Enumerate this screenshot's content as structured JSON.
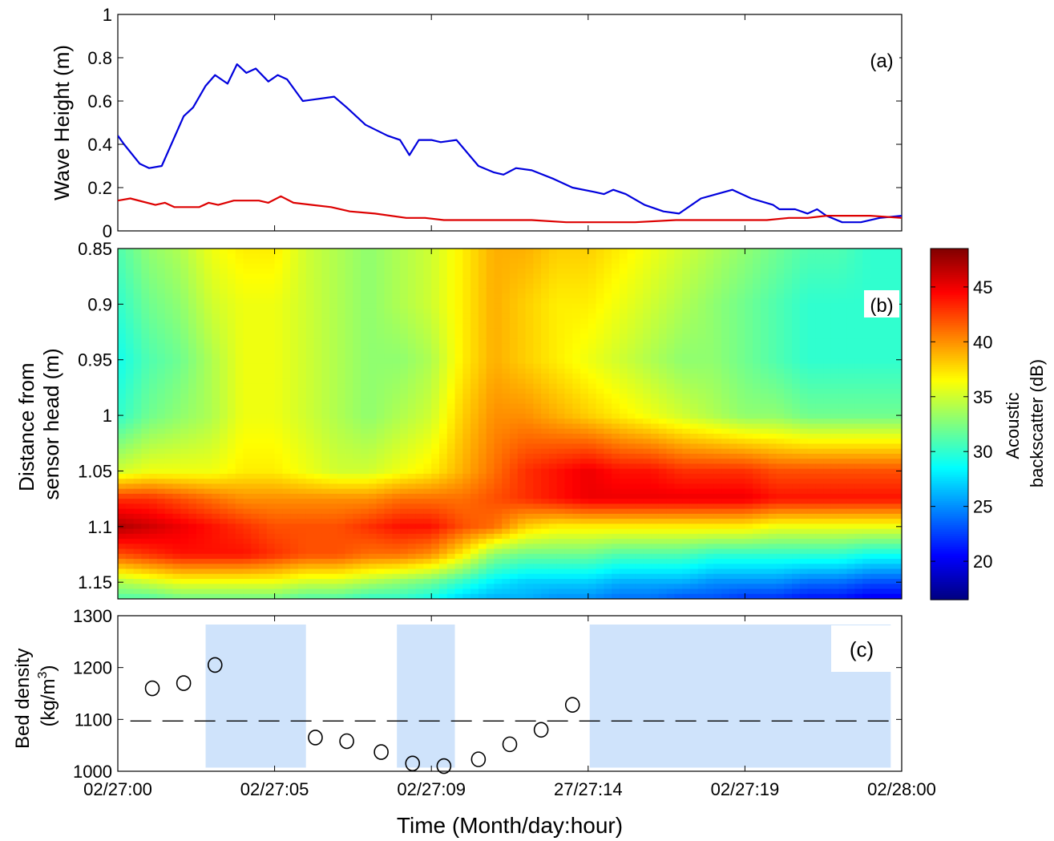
{
  "figure": {
    "x_tick_labels": [
      "02/27:00",
      "02/27:05",
      "02/27:09",
      "27/27:14",
      "02/27:19",
      "02/28:00"
    ],
    "x_tick_hours": [
      0,
      5,
      10,
      15,
      20,
      25
    ],
    "xlabel": "Time (Month/day:hour)",
    "x_range_hours": [
      0,
      25
    ]
  },
  "chart_data": [
    {
      "type": "line",
      "panel_label": "(a)",
      "ylabel": "Wave Height (m)",
      "ylim": [
        0,
        1
      ],
      "y_ticks": [
        0,
        0.2,
        0.4,
        0.6,
        0.8,
        1
      ],
      "y_tick_labels": [
        "0",
        "0.2",
        "0.4",
        "0.6",
        "0.8",
        "1"
      ],
      "series": [
        {
          "color": "#0000dd",
          "x": [
            0,
            0.2,
            0.7,
            1.0,
            1.4,
            2.1,
            2.4,
            2.8,
            3.1,
            3.5,
            3.8,
            4.1,
            4.4,
            4.8,
            5.1,
            5.4,
            5.9,
            6.9,
            7.3,
            7.9,
            8.6,
            9.0,
            9.3,
            9.6,
            10.0,
            10.3,
            10.8,
            11.5,
            12.0,
            12.3,
            12.7,
            13.2,
            13.9,
            14.5,
            15.2,
            15.5,
            15.8,
            16.2,
            16.8,
            17.4,
            17.9,
            18.6,
            19.1,
            19.6,
            20.2,
            20.9,
            21.1,
            21.6,
            22.0,
            22.3,
            22.6,
            23.1,
            23.7,
            24.3,
            25.0
          ],
          "y": [
            0.44,
            0.4,
            0.31,
            0.29,
            0.3,
            0.53,
            0.57,
            0.67,
            0.72,
            0.68,
            0.77,
            0.73,
            0.75,
            0.69,
            0.72,
            0.7,
            0.6,
            0.62,
            0.57,
            0.49,
            0.44,
            0.42,
            0.35,
            0.42,
            0.42,
            0.41,
            0.42,
            0.3,
            0.27,
            0.26,
            0.29,
            0.28,
            0.24,
            0.2,
            0.18,
            0.17,
            0.19,
            0.17,
            0.12,
            0.09,
            0.08,
            0.15,
            0.17,
            0.19,
            0.15,
            0.12,
            0.1,
            0.1,
            0.08,
            0.1,
            0.07,
            0.04,
            0.04,
            0.06,
            0.07
          ]
        },
        {
          "color": "#dd0000",
          "x": [
            0,
            0.4,
            1.2,
            1.5,
            1.8,
            2.3,
            2.6,
            2.9,
            3.2,
            3.7,
            4.0,
            4.5,
            4.8,
            5.2,
            5.6,
            6.2,
            6.8,
            7.4,
            8.2,
            9.2,
            9.8,
            10.4,
            11.7,
            12.5,
            13.2,
            14.3,
            15.3,
            16.5,
            17.8,
            18.7,
            19.9,
            20.7,
            21.4,
            22.0,
            22.6,
            23.3,
            24.0,
            25.0
          ],
          "y": [
            0.14,
            0.15,
            0.12,
            0.13,
            0.11,
            0.11,
            0.11,
            0.13,
            0.12,
            0.14,
            0.14,
            0.14,
            0.13,
            0.16,
            0.13,
            0.12,
            0.11,
            0.09,
            0.08,
            0.06,
            0.06,
            0.05,
            0.05,
            0.05,
            0.05,
            0.04,
            0.04,
            0.04,
            0.05,
            0.05,
            0.05,
            0.05,
            0.06,
            0.06,
            0.07,
            0.07,
            0.07,
            0.06
          ]
        }
      ]
    },
    {
      "type": "heatmap",
      "panel_label": "(b)",
      "ylabel_lines": [
        "Distance from",
        "sensor head (m)"
      ],
      "ylim": [
        0.85,
        1.165
      ],
      "y_ticks": [
        0.85,
        0.9,
        0.95,
        1,
        1.05,
        1.1,
        1.15
      ],
      "y_tick_labels": [
        "0.85",
        "0.9",
        "0.95",
        "1",
        "1.05",
        "1.1",
        "1.15"
      ],
      "y_inverted": true,
      "x_hours": [
        0,
        1,
        2,
        3,
        4,
        5,
        6,
        7,
        8,
        9,
        10,
        11,
        12,
        13,
        14,
        15,
        16,
        17,
        18,
        19,
        20,
        21,
        22,
        23,
        24,
        25
      ],
      "y_depths": [
        0.85,
        0.9,
        0.95,
        1.0,
        1.05,
        1.075,
        1.1,
        1.125,
        1.15,
        1.165
      ],
      "z_db": [
        [
          31,
          33,
          34,
          36,
          37,
          37,
          35,
          34,
          33,
          34,
          35,
          37,
          39,
          39,
          38,
          38,
          37,
          36,
          35,
          34,
          33,
          32,
          31,
          31,
          30,
          30
        ],
        [
          30,
          32,
          33,
          35,
          36,
          36,
          35,
          34,
          33,
          34,
          35,
          37,
          39,
          38,
          37,
          37,
          36,
          35,
          34,
          33,
          32,
          31,
          30,
          30,
          30,
          30
        ],
        [
          29,
          31,
          32,
          34,
          36,
          36,
          35,
          34,
          33,
          33,
          34,
          37,
          39,
          38,
          37,
          36,
          35,
          34,
          33,
          33,
          32,
          31,
          30,
          30,
          30,
          30
        ],
        [
          30,
          32,
          33,
          34,
          36,
          36,
          35,
          34,
          33,
          34,
          35,
          38,
          40,
          40,
          39,
          38,
          37,
          36,
          35,
          34,
          33,
          33,
          32,
          32,
          32,
          32
        ],
        [
          35,
          36,
          36,
          36,
          37,
          37,
          36,
          35,
          35,
          36,
          37,
          39,
          41,
          43,
          44,
          45,
          44,
          44,
          43,
          43,
          43,
          42,
          42,
          42,
          42,
          42
        ],
        [
          43,
          43,
          42,
          41,
          40,
          40,
          40,
          40,
          40,
          41,
          41,
          41,
          42,
          43,
          44,
          45,
          45,
          45,
          45,
          45,
          45,
          44,
          44,
          44,
          44,
          44
        ],
        [
          47,
          46,
          45,
          44,
          43,
          42,
          42,
          42,
          43,
          44,
          44,
          42,
          41,
          38,
          37,
          37,
          37,
          37,
          37,
          37,
          37,
          36,
          36,
          36,
          36,
          36
        ],
        [
          42,
          43,
          44,
          44,
          44,
          43,
          42,
          42,
          41,
          41,
          40,
          37,
          33,
          32,
          32,
          32,
          31,
          31,
          31,
          30,
          30,
          30,
          30,
          30,
          29,
          29
        ],
        [
          34,
          35,
          36,
          36,
          36,
          36,
          35,
          35,
          34,
          33,
          32,
          30,
          28,
          27,
          27,
          27,
          26,
          26,
          26,
          25,
          25,
          25,
          24,
          24,
          23,
          23
        ],
        [
          31,
          31,
          32,
          32,
          32,
          32,
          31,
          31,
          30,
          30,
          29,
          27,
          26,
          26,
          25,
          25,
          24,
          24,
          23,
          23,
          22,
          22,
          21,
          21,
          20,
          20
        ]
      ],
      "colorbar": {
        "range": [
          16.5,
          48.5
        ],
        "ticks": [
          20,
          25,
          30,
          35,
          40,
          45
        ],
        "tick_labels": [
          "20",
          "25",
          "30",
          "35",
          "40",
          "45"
        ],
        "label_lines": [
          "Acoustic",
          "backscatter (dB)"
        ],
        "colormap": "jet"
      }
    },
    {
      "type": "scatter",
      "panel_label": "(c)",
      "ylabel_lines": [
        "Bed density",
        "(kg/m",
        "3",
        ")"
      ],
      "ylim": [
        1000,
        1300
      ],
      "y_ticks": [
        1000,
        1100,
        1200,
        1300
      ],
      "y_tick_labels": [
        "1000",
        "1100",
        "1200",
        "1300"
      ],
      "x": [
        1.1,
        2.1,
        3.1,
        6.3,
        7.3,
        8.4,
        9.4,
        10.4,
        11.5,
        12.5,
        13.5,
        14.5
      ],
      "y": [
        1160,
        1170,
        1205,
        1065,
        1058,
        1037,
        1015,
        1010,
        1023,
        1052,
        1080,
        1128
      ],
      "reference_line": 1097,
      "shaded_spans_hours": [
        [
          2.8,
          6.0
        ],
        [
          8.9,
          10.75
        ],
        [
          15.05,
          24.65
        ]
      ],
      "shade_color": "#cfe3fb"
    }
  ]
}
